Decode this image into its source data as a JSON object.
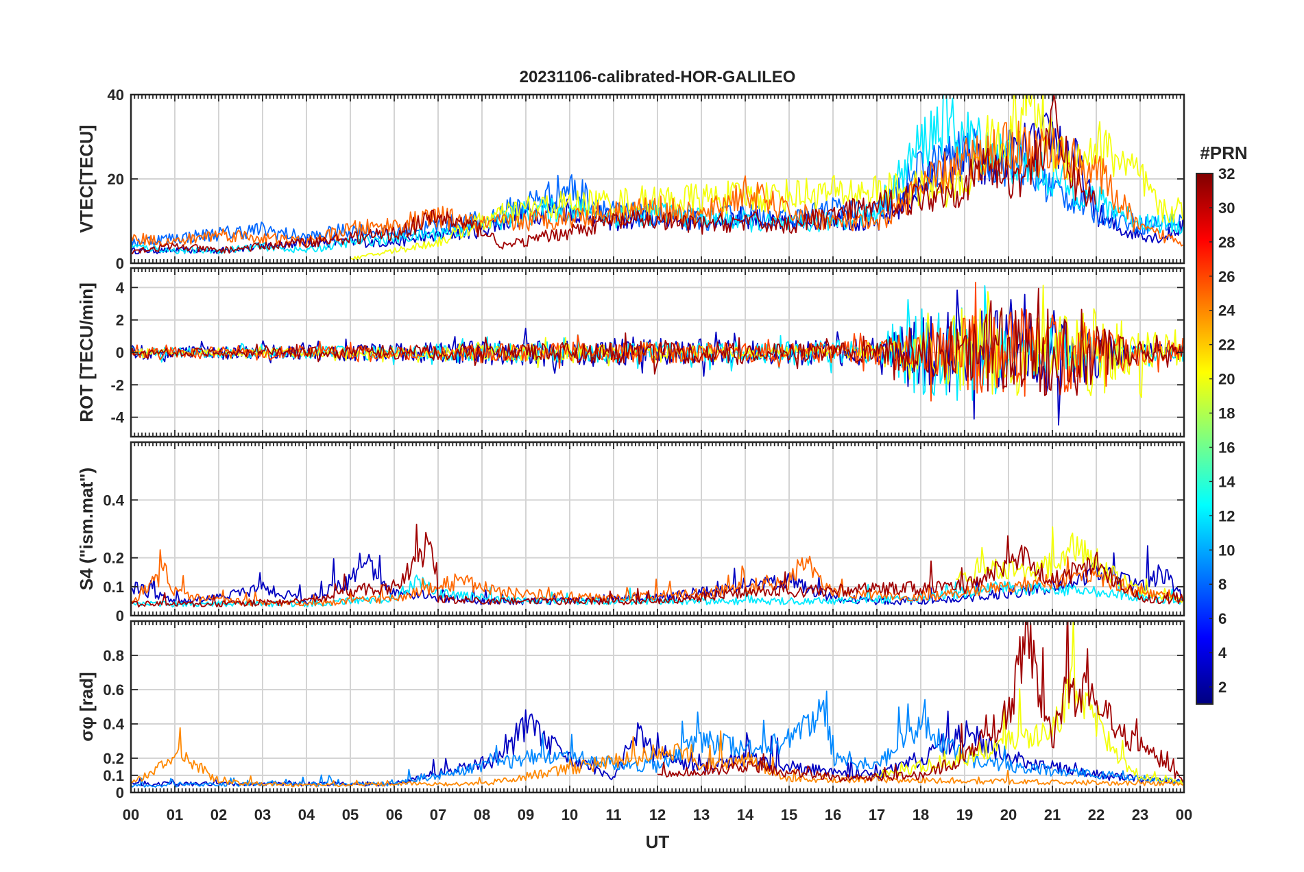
{
  "chart_data": {
    "type": "line",
    "title": "20231106-calibrated-HOR-GALILEO",
    "xlabel": "UT",
    "x_ticks": [
      "00",
      "01",
      "02",
      "03",
      "04",
      "05",
      "06",
      "07",
      "08",
      "09",
      "10",
      "11",
      "12",
      "13",
      "14",
      "15",
      "16",
      "17",
      "18",
      "19",
      "20",
      "21",
      "22",
      "23",
      "00"
    ],
    "xlim": [
      0,
      24
    ],
    "grid": true,
    "colorbar": {
      "title": "#PRN",
      "ticks": [
        "2",
        "4",
        "6",
        "8",
        "10",
        "12",
        "14",
        "16",
        "18",
        "20",
        "22",
        "24",
        "26",
        "28",
        "30",
        "32"
      ],
      "range": [
        1,
        32
      ],
      "colormap": "jet"
    },
    "panels": [
      {
        "ylabel": "VTEC[TECU]",
        "ylim": [
          0,
          40
        ],
        "yticks": [
          "0",
          "20",
          "40"
        ],
        "series": [
          {
            "prn": 3,
            "x": [
              0,
              2,
              4,
              6,
              8,
              9,
              10,
              11,
              12,
              13,
              14,
              15,
              16,
              17,
              18,
              18.5,
              19,
              19.5,
              20,
              20.5,
              21,
              21.5,
              22,
              22.5,
              23,
              23.5,
              24
            ],
            "y": [
              3,
              3,
              5,
              5,
              8,
              12,
              13,
              10,
              11,
              10,
              11,
              9,
              11,
              9,
              18,
              22,
              25,
              22,
              26,
              27,
              30,
              25,
              12,
              8,
              7,
              6,
              9
            ]
          },
          {
            "prn": 8,
            "x": [
              0,
              1,
              2,
              3,
              4,
              5,
              6,
              7,
              8,
              9,
              10,
              11,
              12,
              13,
              14,
              15,
              16,
              17,
              18,
              19,
              20,
              21,
              22,
              23,
              24
            ],
            "y": [
              5,
              6,
              7,
              8,
              6,
              8,
              7,
              9,
              10,
              14,
              18,
              12,
              11,
              10,
              12,
              10,
              13,
              12,
              22,
              26,
              24,
              18,
              12,
              9,
              10
            ]
          },
          {
            "prn": 12,
            "x": [
              0,
              1,
              2,
              3,
              4,
              5,
              6,
              7,
              8,
              9,
              10,
              11,
              12,
              13,
              14,
              15,
              16,
              17,
              18,
              18.5,
              19,
              20,
              21,
              22,
              23,
              24
            ],
            "y": [
              4,
              3,
              3,
              4,
              3,
              5,
              6,
              7,
              9,
              12,
              13,
              11,
              12,
              11,
              10,
              9,
              10,
              12,
              28,
              34,
              30,
              25,
              20,
              15,
              10,
              9
            ]
          },
          {
            "prn": 20,
            "x": [
              5,
              6,
              7,
              8,
              9,
              10,
              19,
              19.5,
              20,
              20.5,
              21,
              21.5,
              22,
              22.5,
              23,
              23.5,
              24
            ],
            "y": [
              1,
              3,
              5,
              10,
              13,
              14,
              18,
              28,
              30,
              40,
              28,
              24,
              28,
              25,
              20,
              12,
              13
            ]
          },
          {
            "prn": 25,
            "x": [
              0,
              1,
              2,
              3,
              4,
              5,
              6,
              7,
              8,
              11,
              12,
              13,
              14,
              15,
              16,
              17,
              18,
              19,
              20,
              21,
              22,
              23,
              24
            ],
            "y": [
              6,
              5,
              7,
              6,
              5,
              8,
              9,
              11,
              9,
              12,
              13,
              11,
              17,
              12,
              10,
              9,
              18,
              24,
              28,
              26,
              22,
              8,
              5
            ]
          },
          {
            "prn": 31,
            "x": [
              0,
              1,
              2,
              3,
              4,
              5,
              6,
              7,
              8,
              8.5,
              11,
              12,
              13,
              14,
              15,
              19,
              19.5,
              20,
              20.5,
              21,
              21.5,
              22
            ],
            "y": [
              3,
              4,
              3,
              4,
              5,
              6,
              7,
              11,
              8,
              4,
              10,
              10,
              9,
              10,
              9,
              18,
              24,
              20,
              22,
              33,
              20,
              14
            ]
          }
        ]
      },
      {
        "ylabel": "ROT [TECU/min]",
        "ylim": [
          -5.2,
          5.2
        ],
        "yticks": [
          "-4",
          "-2",
          "0",
          "2",
          "4"
        ],
        "series": [
          {
            "prn": 3,
            "x": [
              0,
              3,
              6,
              9,
              12,
              15,
              17,
              18,
              19,
              20,
              21,
              22,
              23,
              24
            ],
            "amplitude": [
              0.8,
              0.8,
              1.0,
              1.6,
              1.6,
              1.4,
              1.6,
              4.0,
              5.2,
              4.0,
              5.0,
              3.0,
              1.2,
              1.0
            ]
          },
          {
            "prn": 12,
            "x": [
              0,
              3,
              6,
              9,
              12,
              15,
              17,
              18,
              19,
              20,
              21,
              22,
              23,
              24
            ],
            "amplitude": [
              0.6,
              0.6,
              0.8,
              1.2,
              1.2,
              1.2,
              1.5,
              5.2,
              5.2,
              3.0,
              2.5,
              2.0,
              1.0,
              0.8
            ]
          },
          {
            "prn": 20,
            "x": [
              0,
              3,
              6,
              9,
              12,
              15,
              17,
              18,
              19,
              20,
              21,
              22,
              23,
              24
            ],
            "amplitude": [
              0.4,
              0.4,
              0.6,
              1.0,
              0.8,
              0.6,
              0.8,
              2.0,
              5.2,
              5.2,
              4.0,
              5.0,
              3.0,
              1.5
            ]
          },
          {
            "prn": 26,
            "x": [
              0,
              3,
              6,
              9,
              12,
              15,
              17,
              18,
              19,
              20,
              21,
              22,
              23,
              24
            ],
            "amplitude": [
              0.6,
              0.6,
              0.8,
              1.0,
              1.2,
              1.0,
              1.5,
              3.0,
              4.5,
              5.2,
              5.2,
              3.0,
              1.5,
              1.0
            ]
          },
          {
            "prn": 31,
            "x": [
              0,
              3,
              6,
              9,
              12,
              15,
              17,
              18,
              19,
              20,
              21,
              22,
              23,
              24
            ],
            "amplitude": [
              0.5,
              0.5,
              0.8,
              1.0,
              1.4,
              1.0,
              1.2,
              2.5,
              4.0,
              5.2,
              5.2,
              3.5,
              1.2,
              0.8
            ]
          }
        ]
      },
      {
        "ylabel": "S4 (\"ism.mat\")",
        "ylim": [
          0,
          0.6
        ],
        "yticks": [
          "0",
          "0.1",
          "0.2",
          "0.4"
        ],
        "series": [
          {
            "prn": 3,
            "x": [
              0,
              1,
              2,
              3,
              4,
              5,
              5.3,
              6,
              7,
              8,
              9,
              10,
              11,
              12,
              13,
              14,
              15,
              16,
              17,
              18,
              19,
              20,
              21,
              22,
              23,
              23.5,
              24
            ],
            "y": [
              0.1,
              0.05,
              0.06,
              0.1,
              0.05,
              0.12,
              0.2,
              0.08,
              0.06,
              0.05,
              0.05,
              0.05,
              0.06,
              0.06,
              0.08,
              0.1,
              0.12,
              0.06,
              0.05,
              0.05,
              0.06,
              0.08,
              0.1,
              0.15,
              0.1,
              0.15,
              0.06
            ]
          },
          {
            "prn": 12,
            "x": [
              0,
              2,
              4,
              6,
              6.5,
              7,
              8,
              9,
              10,
              12,
              14,
              16,
              18,
              19,
              20,
              22,
              24
            ],
            "y": [
              0.04,
              0.04,
              0.04,
              0.06,
              0.12,
              0.08,
              0.06,
              0.05,
              0.05,
              0.05,
              0.05,
              0.05,
              0.06,
              0.08,
              0.1,
              0.08,
              0.05
            ]
          },
          {
            "prn": 20,
            "x": [
              18.8,
              19.5,
              20,
              21,
              21.5,
              22,
              23,
              24
            ],
            "y": [
              0.12,
              0.18,
              0.15,
              0.16,
              0.25,
              0.18,
              0.08,
              0.05
            ]
          },
          {
            "prn": 25,
            "x": [
              0,
              0.8,
              1,
              2,
              4,
              6,
              7.5,
              8.5,
              11,
              13,
              14,
              15,
              15.3,
              16,
              18,
              20,
              21,
              22,
              23,
              24
            ],
            "y": [
              0.05,
              0.15,
              0.08,
              0.05,
              0.04,
              0.06,
              0.12,
              0.08,
              0.06,
              0.08,
              0.1,
              0.12,
              0.2,
              0.08,
              0.06,
              0.1,
              0.12,
              0.14,
              0.08,
              0.06
            ]
          },
          {
            "prn": 31,
            "x": [
              0,
              2,
              4,
              5,
              6,
              6.8,
              7,
              8,
              12,
              14,
              19,
              20.3,
              21,
              22,
              23,
              24
            ],
            "y": [
              0.04,
              0.04,
              0.05,
              0.08,
              0.1,
              0.25,
              0.06,
              0.05,
              0.05,
              0.08,
              0.1,
              0.2,
              0.12,
              0.18,
              0.06,
              0.05
            ]
          }
        ]
      },
      {
        "ylabel": "σφ [rad]",
        "ylim": [
          0,
          1.0
        ],
        "yticks": [
          "0",
          "0.1",
          "0.2",
          "0.4",
          "0.6",
          "0.8"
        ],
        "series": [
          {
            "prn": 3,
            "x": [
              0,
              3,
              6,
              8.5,
              9,
              10,
              11,
              11.5,
              12,
              13,
              14,
              15,
              16,
              17,
              18,
              19,
              20,
              21,
              22,
              23,
              24
            ],
            "y": [
              0.05,
              0.05,
              0.05,
              0.2,
              0.4,
              0.2,
              0.08,
              0.35,
              0.2,
              0.15,
              0.2,
              0.15,
              0.12,
              0.1,
              0.2,
              0.35,
              0.2,
              0.15,
              0.1,
              0.08,
              0.06
            ]
          },
          {
            "prn": 9,
            "x": [
              0,
              3,
              6,
              9,
              10,
              12,
              13,
              14,
              15,
              15.8,
              16,
              17,
              18,
              18.5,
              19,
              20,
              24
            ],
            "y": [
              0.04,
              0.05,
              0.05,
              0.2,
              0.2,
              0.15,
              0.3,
              0.25,
              0.3,
              0.5,
              0.2,
              0.15,
              0.4,
              0.3,
              0.2,
              0.15,
              0.06
            ]
          },
          {
            "prn": 20,
            "x": [
              17,
              18,
              19,
              20,
              21,
              21.5,
              22,
              22.5,
              23,
              24
            ],
            "y": [
              0.1,
              0.15,
              0.2,
              0.3,
              0.35,
              0.65,
              0.4,
              0.2,
              0.1,
              0.06
            ]
          },
          {
            "prn": 24,
            "x": [
              0,
              1.2,
              2,
              4,
              6,
              8,
              12.5,
              13,
              14,
              15,
              24
            ],
            "y": [
              0.05,
              0.22,
              0.06,
              0.04,
              0.05,
              0.05,
              0.25,
              0.15,
              0.2,
              0.08,
              0.05
            ]
          },
          {
            "prn": 31,
            "x": [
              12,
              14,
              16,
              18,
              19,
              20,
              20.4,
              21,
              21.3,
              22,
              22.5,
              23,
              24
            ],
            "y": [
              0.1,
              0.15,
              0.08,
              0.1,
              0.2,
              0.45,
              0.92,
              0.3,
              0.6,
              0.55,
              0.35,
              0.3,
              0.06
            ]
          }
        ]
      }
    ]
  }
}
